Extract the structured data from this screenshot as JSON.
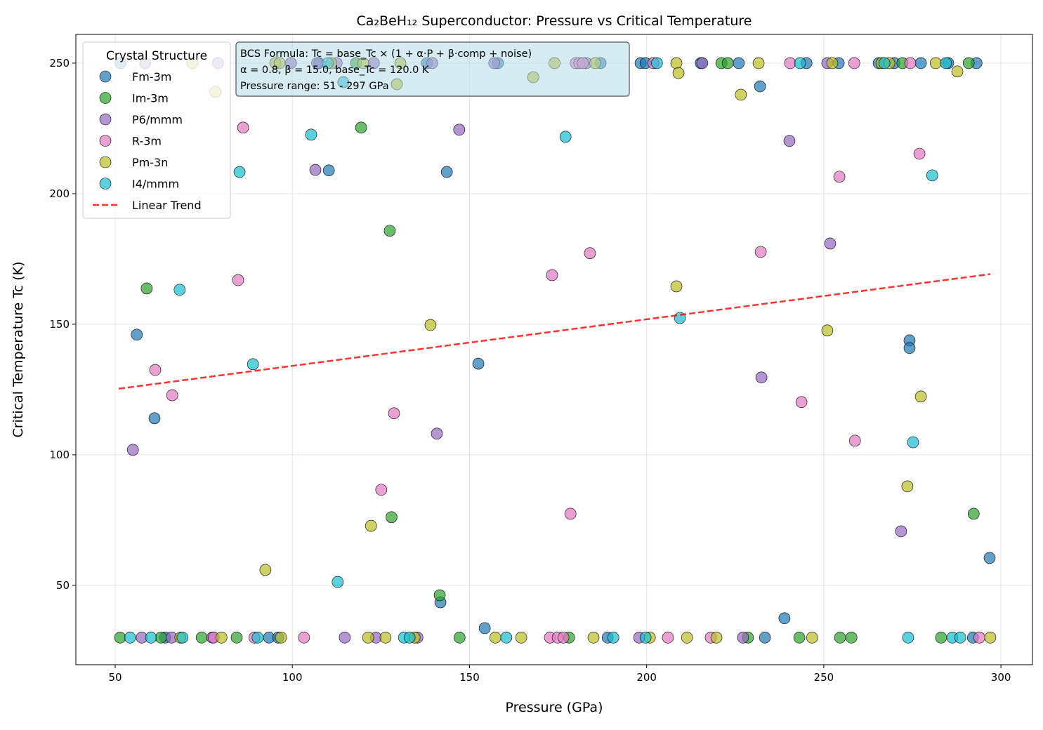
{
  "chart_data": {
    "type": "scatter",
    "title": "Ca₂BeH₁₂ Superconductor: Pressure vs Critical Temperature",
    "xlabel": "Pressure (GPa)",
    "ylabel": "Critical Temperature Tc (K)",
    "xlim": [
      38.9,
      308.9
    ],
    "ylim": [
      19.6,
      261
    ],
    "xticks": [
      50,
      100,
      150,
      200,
      250,
      300
    ],
    "yticks": [
      50,
      100,
      150,
      200,
      250
    ],
    "grid": true,
    "legend": {
      "title": "Crystal Structure",
      "placement": "top-left"
    },
    "annotation": [
      "BCS Formula: Tc = base_Tc × (1 + α·P + β·comp + noise)",
      "α = 0.8, β = 15.0, base_Tc = 120.0 K",
      "Pressure range: 51 - 297 GPa"
    ],
    "annotation_color": "#add8e6",
    "trend": {
      "name": "Linear Trend",
      "color": "#ff0000",
      "points": [
        [
          51,
          125.3
        ],
        [
          297,
          169.2
        ]
      ]
    },
    "series": [
      {
        "name": "Fm-3m",
        "color": "#1f77b4",
        "points": [
          [
            51.5,
            250
          ],
          [
            107.5,
            250
          ],
          [
            138,
            250
          ],
          [
            158,
            250
          ],
          [
            187,
            250
          ],
          [
            198.3,
            250
          ],
          [
            199.7,
            250
          ],
          [
            215.3,
            250
          ],
          [
            226,
            250
          ],
          [
            245.1,
            250
          ],
          [
            254.2,
            250
          ],
          [
            265.5,
            250
          ],
          [
            269.9,
            250
          ],
          [
            277.4,
            250
          ],
          [
            285.1,
            250
          ],
          [
            293.1,
            250
          ],
          [
            232,
            241.1
          ],
          [
            56.1,
            146
          ],
          [
            61.1,
            114
          ],
          [
            110.3,
            208.9
          ],
          [
            143.6,
            208.3
          ],
          [
            141.8,
            43.5
          ],
          [
            152.5,
            134.9
          ],
          [
            154.3,
            33.6
          ],
          [
            238.9,
            37.4
          ],
          [
            274.2,
            143.8
          ],
          [
            274.2,
            140.9
          ],
          [
            296.8,
            60.5
          ],
          [
            64.1,
            30
          ],
          [
            93.4,
            30
          ],
          [
            96,
            30
          ],
          [
            189,
            30
          ],
          [
            233.4,
            30
          ],
          [
            292.1,
            30
          ]
        ]
      },
      {
        "name": "Im-3m",
        "color": "#2ca02c",
        "points": [
          [
            118,
            250
          ],
          [
            221.1,
            250
          ],
          [
            222.9,
            250
          ],
          [
            272.2,
            250
          ],
          [
            290.9,
            250
          ],
          [
            58.9,
            163.7
          ],
          [
            119.4,
            225.3
          ],
          [
            127.5,
            185.8
          ],
          [
            128,
            76.1
          ],
          [
            141.6,
            46.2
          ],
          [
            292.3,
            77.4
          ],
          [
            51.4,
            30
          ],
          [
            62.9,
            30
          ],
          [
            74.4,
            30
          ],
          [
            84.3,
            30
          ],
          [
            147.2,
            30
          ],
          [
            178.1,
            30
          ],
          [
            228.6,
            30
          ],
          [
            243.1,
            30
          ],
          [
            254.6,
            30
          ],
          [
            257.8,
            30
          ],
          [
            283.1,
            30
          ]
        ]
      },
      {
        "name": "P6/mmm",
        "color": "#9467bd",
        "points": [
          [
            58.5,
            250
          ],
          [
            79,
            250
          ],
          [
            99.6,
            250
          ],
          [
            107,
            250
          ],
          [
            112.5,
            250
          ],
          [
            123,
            250
          ],
          [
            139.5,
            250
          ],
          [
            157,
            250
          ],
          [
            183,
            250
          ],
          [
            215.7,
            250
          ],
          [
            251,
            250
          ],
          [
            55,
            101.9
          ],
          [
            106.5,
            209.1
          ],
          [
            140.8,
            108.1
          ],
          [
            147.1,
            224.5
          ],
          [
            240.3,
            220.2
          ],
          [
            232.4,
            129.6
          ],
          [
            251.8,
            180.9
          ],
          [
            271.8,
            70.7
          ],
          [
            57.5,
            30
          ],
          [
            65.9,
            30
          ],
          [
            77.4,
            30
          ],
          [
            114.8,
            30
          ],
          [
            123.6,
            30
          ],
          [
            135.3,
            30
          ],
          [
            197.9,
            30
          ],
          [
            227.2,
            30
          ]
        ]
      },
      {
        "name": "R-3m",
        "color": "#e377c2",
        "points": [
          [
            180,
            250
          ],
          [
            181,
            250
          ],
          [
            182,
            250
          ],
          [
            201.9,
            250
          ],
          [
            240.5,
            250
          ],
          [
            258.6,
            250
          ],
          [
            274.4,
            250
          ],
          [
            61.3,
            132.5
          ],
          [
            66.1,
            122.8
          ],
          [
            86.1,
            225.3
          ],
          [
            84.7,
            166.9
          ],
          [
            128.7,
            115.9
          ],
          [
            125.1,
            86.6
          ],
          [
            173.3,
            168.8
          ],
          [
            178.5,
            77.4
          ],
          [
            184,
            177.2
          ],
          [
            232.2,
            177.7
          ],
          [
            243.7,
            120.2
          ],
          [
            254.4,
            206.5
          ],
          [
            258.8,
            105.4
          ],
          [
            277,
            215.3
          ],
          [
            77.8,
            30
          ],
          [
            89.3,
            30
          ],
          [
            103.3,
            30
          ],
          [
            172.7,
            30
          ],
          [
            174.9,
            30
          ],
          [
            176.5,
            30
          ],
          [
            206,
            30
          ],
          [
            218.1,
            30
          ],
          [
            293.9,
            30
          ]
        ]
      },
      {
        "name": "Pm-3n",
        "color": "#bcbd22",
        "points": [
          [
            71.8,
            250
          ],
          [
            95.2,
            250
          ],
          [
            96.4,
            250
          ],
          [
            111,
            250
          ],
          [
            120,
            250
          ],
          [
            130.5,
            250
          ],
          [
            174,
            250
          ],
          [
            185.5,
            250
          ],
          [
            208.4,
            250
          ],
          [
            231.6,
            250
          ],
          [
            252.4,
            250
          ],
          [
            266.3,
            250
          ],
          [
            268.5,
            250
          ],
          [
            281.6,
            250
          ],
          [
            78.3,
            239
          ],
          [
            209,
            246.2
          ],
          [
            287.7,
            246.8
          ],
          [
            168,
            244.6
          ],
          [
            129.5,
            241.9
          ],
          [
            92.4,
            55.9
          ],
          [
            122.2,
            72.8
          ],
          [
            139,
            149.7
          ],
          [
            208.4,
            164.5
          ],
          [
            226.6,
            237.9
          ],
          [
            251,
            147.6
          ],
          [
            277.4,
            122.3
          ],
          [
            273.6,
            87.9
          ],
          [
            68.4,
            30
          ],
          [
            80,
            30
          ],
          [
            96.8,
            30
          ],
          [
            121.4,
            30
          ],
          [
            126.3,
            30
          ],
          [
            134.5,
            30
          ],
          [
            157.3,
            30
          ],
          [
            164.6,
            30
          ],
          [
            185,
            30
          ],
          [
            200.9,
            30
          ],
          [
            211.4,
            30
          ],
          [
            219.7,
            30
          ],
          [
            246.7,
            30
          ],
          [
            297,
            30
          ]
        ]
      },
      {
        "name": "I4/mmm",
        "color": "#17becf",
        "points": [
          [
            110,
            250
          ],
          [
            202.9,
            250
          ],
          [
            243.3,
            250
          ],
          [
            267.1,
            250
          ],
          [
            284.5,
            250
          ],
          [
            114.4,
            242.7
          ],
          [
            68.2,
            163.2
          ],
          [
            85.1,
            208.3
          ],
          [
            88.9,
            134.7
          ],
          [
            105.3,
            222.6
          ],
          [
            112.8,
            51.3
          ],
          [
            177.1,
            221.8
          ],
          [
            209.4,
            152.4
          ],
          [
            280.6,
            207
          ],
          [
            275.2,
            104.8
          ],
          [
            54.2,
            30
          ],
          [
            60.1,
            30
          ],
          [
            69,
            30
          ],
          [
            90.2,
            30
          ],
          [
            131.5,
            30
          ],
          [
            133.1,
            30
          ],
          [
            160.4,
            30
          ],
          [
            190.6,
            30
          ],
          [
            199.7,
            30
          ],
          [
            273.8,
            30
          ],
          [
            286.3,
            30
          ],
          [
            288.5,
            30
          ]
        ]
      }
    ]
  }
}
